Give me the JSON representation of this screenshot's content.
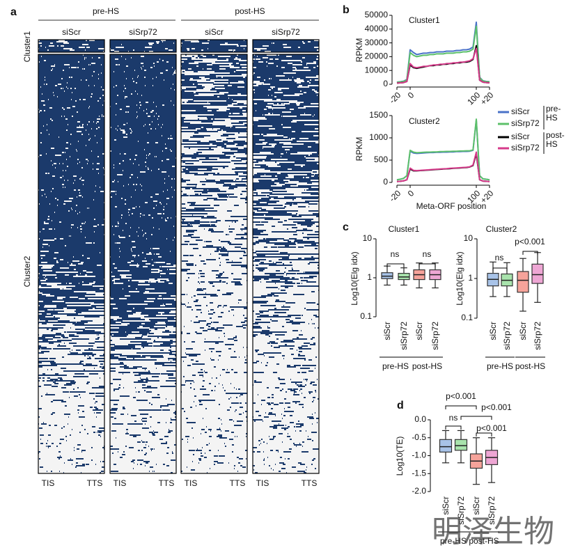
{
  "panel_labels": [
    "a",
    "b",
    "c",
    "d"
  ],
  "heatmap": {
    "groups": [
      "pre-HS",
      "post-HS"
    ],
    "columns": [
      "siScr",
      "siSrp72",
      "siScr",
      "siSrp72"
    ],
    "row_clusters": [
      "Cluster1",
      "Cluster2"
    ],
    "x_labels": [
      "TIS",
      "TTS"
    ]
  },
  "chart_data": [
    {
      "type": "line",
      "title": "Cluster1",
      "ylabel": "RPKM",
      "x": [
        -20,
        -15,
        -10,
        -5,
        0,
        5,
        10,
        15,
        20,
        25,
        30,
        35,
        40,
        45,
        50,
        55,
        60,
        65,
        70,
        75,
        80,
        85,
        90,
        95,
        100,
        105,
        110,
        115,
        120
      ],
      "xlim": [
        -20,
        120
      ],
      "xticks": [
        -20,
        0,
        100,
        {
          "value": 120,
          "label": "+20"
        }
      ],
      "ylim": [
        0,
        50000
      ],
      "yticks": [
        0,
        10000,
        20000,
        30000,
        40000,
        50000
      ],
      "series": [
        {
          "color": "#4a72c8",
          "values": [
            1500,
            1800,
            2200,
            3500,
            25000,
            23000,
            21500,
            22000,
            22500,
            22500,
            23000,
            23000,
            23500,
            23500,
            23500,
            24000,
            24000,
            24000,
            24500,
            24500,
            25000,
            25000,
            25500,
            27000,
            45000,
            5000,
            2500,
            2000,
            1800
          ]
        },
        {
          "color": "#5cc06a",
          "values": [
            1400,
            1700,
            2000,
            3200,
            23000,
            21000,
            20000,
            20500,
            21000,
            21000,
            21500,
            21500,
            22000,
            22000,
            22000,
            22500,
            22500,
            22500,
            23000,
            23000,
            23500,
            23500,
            24000,
            25500,
            42000,
            4800,
            2300,
            1900,
            1700
          ]
        },
        {
          "color": "#000000",
          "values": [
            800,
            1000,
            1200,
            2000,
            14000,
            12000,
            11500,
            12000,
            12500,
            13000,
            13500,
            13500,
            14000,
            14000,
            14500,
            14500,
            15000,
            15000,
            15500,
            15500,
            16000,
            16000,
            16500,
            18000,
            28000,
            3000,
            1500,
            1200,
            1000
          ]
        },
        {
          "color": "#d63a8a",
          "values": [
            800,
            1000,
            1200,
            2000,
            15000,
            12500,
            12000,
            12500,
            13000,
            13000,
            13500,
            14000,
            14000,
            14500,
            14500,
            15000,
            15000,
            15500,
            15500,
            16000,
            16000,
            16500,
            17000,
            18500,
            26000,
            3000,
            1500,
            1200,
            1000
          ]
        }
      ]
    },
    {
      "type": "line",
      "title": "Cluster2",
      "ylabel": "RPKM",
      "xlabel": "Meta-ORF position",
      "x": [
        -20,
        -15,
        -10,
        -5,
        0,
        5,
        10,
        15,
        20,
        25,
        30,
        35,
        40,
        45,
        50,
        55,
        60,
        65,
        70,
        75,
        80,
        85,
        90,
        95,
        100,
        105,
        110,
        115,
        120
      ],
      "xlim": [
        -20,
        120
      ],
      "xticks": [
        -20,
        0,
        100,
        {
          "value": 120,
          "label": "+20"
        }
      ],
      "ylim": [
        0,
        1500
      ],
      "yticks": [
        0,
        500,
        1000,
        1500
      ],
      "legend_groups": [
        "pre-HS",
        "post-HS"
      ],
      "series": [
        {
          "name": "siScr",
          "color": "#4a72c8",
          "values": [
            60,
            70,
            90,
            150,
            700,
            660,
            650,
            655,
            660,
            665,
            670,
            670,
            675,
            675,
            680,
            680,
            685,
            685,
            690,
            690,
            695,
            695,
            700,
            720,
            1400,
            150,
            80,
            70,
            60
          ]
        },
        {
          "name": "siSrp72",
          "color": "#5cc06a",
          "values": [
            60,
            70,
            90,
            150,
            720,
            680,
            665,
            670,
            675,
            680,
            680,
            685,
            685,
            690,
            690,
            695,
            695,
            700,
            700,
            705,
            705,
            710,
            710,
            730,
            1420,
            150,
            80,
            70,
            60
          ]
        },
        {
          "name": "siScr",
          "color": "#000000",
          "values": [
            20,
            25,
            35,
            60,
            300,
            260,
            260,
            265,
            270,
            275,
            280,
            285,
            290,
            295,
            300,
            305,
            310,
            315,
            320,
            325,
            330,
            335,
            345,
            380,
            640,
            60,
            30,
            25,
            20
          ]
        },
        {
          "name": "siSrp72",
          "color": "#d63a8a",
          "values": [
            20,
            25,
            35,
            60,
            320,
            270,
            265,
            270,
            275,
            280,
            285,
            290,
            295,
            300,
            305,
            310,
            315,
            320,
            325,
            330,
            335,
            340,
            350,
            390,
            680,
            60,
            30,
            25,
            20
          ]
        }
      ]
    },
    {
      "type": "box",
      "title": "Cluster1",
      "ylabel": "Log10(Elg idx)",
      "categories": [
        "siScr",
        "siSrp72",
        "siScr",
        "siSrp72"
      ],
      "groups": [
        "pre-HS",
        "post-HS"
      ],
      "log_scale": true,
      "ylim": [
        0.1,
        10
      ],
      "yticks": [
        0.1,
        1,
        10
      ],
      "stats": [
        [
          0.65,
          0.95,
          1.1,
          1.35,
          2.0
        ],
        [
          0.65,
          0.9,
          1.05,
          1.3,
          1.8
        ],
        [
          0.55,
          0.9,
          1.2,
          1.6,
          2.4
        ],
        [
          0.55,
          0.9,
          1.2,
          1.6,
          2.4
        ]
      ],
      "colors": [
        "#a8c3e8",
        "#a8e3ac",
        "#f6a39a",
        "#eea6d4"
      ],
      "annotations": [
        "ns",
        "ns"
      ]
    },
    {
      "type": "box",
      "title": "Cluster2",
      "ylabel": "Log10(Elg idx)",
      "categories": [
        "siScr",
        "siSrp72",
        "siScr",
        "siSrp72"
      ],
      "groups": [
        "pre-HS",
        "post-HS"
      ],
      "log_scale": true,
      "ylim": [
        0.1,
        10
      ],
      "yticks": [
        0.1,
        1,
        10
      ],
      "stats": [
        [
          0.35,
          0.65,
          0.95,
          1.35,
          2.6
        ],
        [
          0.35,
          0.65,
          0.9,
          1.3,
          2.5
        ],
        [
          0.15,
          0.45,
          0.9,
          1.5,
          3.2
        ],
        [
          0.25,
          0.75,
          1.25,
          2.3,
          4.5
        ]
      ],
      "colors": [
        "#a8c3e8",
        "#a8e3ac",
        "#f6a39a",
        "#eea6d4"
      ],
      "annotations": [
        "ns",
        "p<0.001"
      ]
    },
    {
      "type": "box",
      "ylabel": "Log10(TE)",
      "categories": [
        "siScr",
        "siSrp72",
        "siScr",
        "siSrp72"
      ],
      "groups": [
        "pre-HS",
        "post-HS"
      ],
      "ylim": [
        -2,
        0
      ],
      "yticks": [
        {
          "value": 0,
          "label": "0.0"
        },
        -0.5,
        {
          "value": -1,
          "label": "-1.0"
        },
        -1.5,
        {
          "value": -2,
          "label": "-2.0"
        }
      ],
      "stats": [
        [
          -1.2,
          -0.9,
          -0.75,
          -0.55,
          -0.3
        ],
        [
          -1.2,
          -0.85,
          -0.72,
          -0.55,
          -0.3
        ],
        [
          -1.8,
          -1.35,
          -1.15,
          -0.95,
          -0.5
        ],
        [
          -1.75,
          -1.25,
          -1.05,
          -0.85,
          -0.5
        ]
      ],
      "colors": [
        "#a8c3e8",
        "#a8e3ac",
        "#f6a39a",
        "#eea6d4"
      ],
      "annotations": [
        "p<0.001",
        "p<0.001",
        "ns",
        "p<0.001"
      ]
    }
  ],
  "watermark": "明泽生物"
}
